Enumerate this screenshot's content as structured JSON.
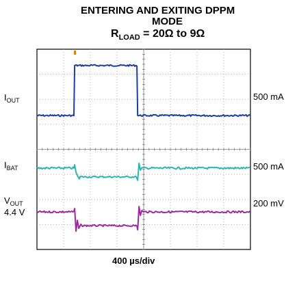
{
  "title": {
    "line1": "ENTERING AND EXITING DPPM",
    "line2": "MODE",
    "line3_main": "R",
    "line3_sub": "LOAD",
    "line3_rest": " = 20Ω to 9Ω"
  },
  "chart_data": {
    "type": "line",
    "divisions": {
      "x": 8,
      "y": 8
    },
    "time_unit": "µs",
    "time_range": [
      0,
      3200
    ],
    "xlabel": "400 µs/div",
    "step_times": [
      565,
      1510
    ],
    "series": [
      {
        "name": "I_OUT",
        "label_main": "I",
        "label_sub": "OUT",
        "scale": "500 mA",
        "color": "#1f3c99",
        "baseline_div": 5.35,
        "high_div": 7.35,
        "unit": "div"
      },
      {
        "name": "I_BAT",
        "label_main": "I",
        "label_sub": "BAT",
        "scale": "500 mA",
        "color": "#2fb5ad",
        "baseline_div": 3.25,
        "low_div": 2.9,
        "unit": "div"
      },
      {
        "name": "V_OUT",
        "label_main": "V",
        "label_sub": "OUT",
        "extra": "4.4 V",
        "scale": "200 mV",
        "color": "#9c2a9c",
        "baseline_div": 1.5,
        "low_div": 0.95,
        "unit": "div"
      }
    ],
    "grid": true,
    "trigger_marker_color": "#e07b00"
  }
}
